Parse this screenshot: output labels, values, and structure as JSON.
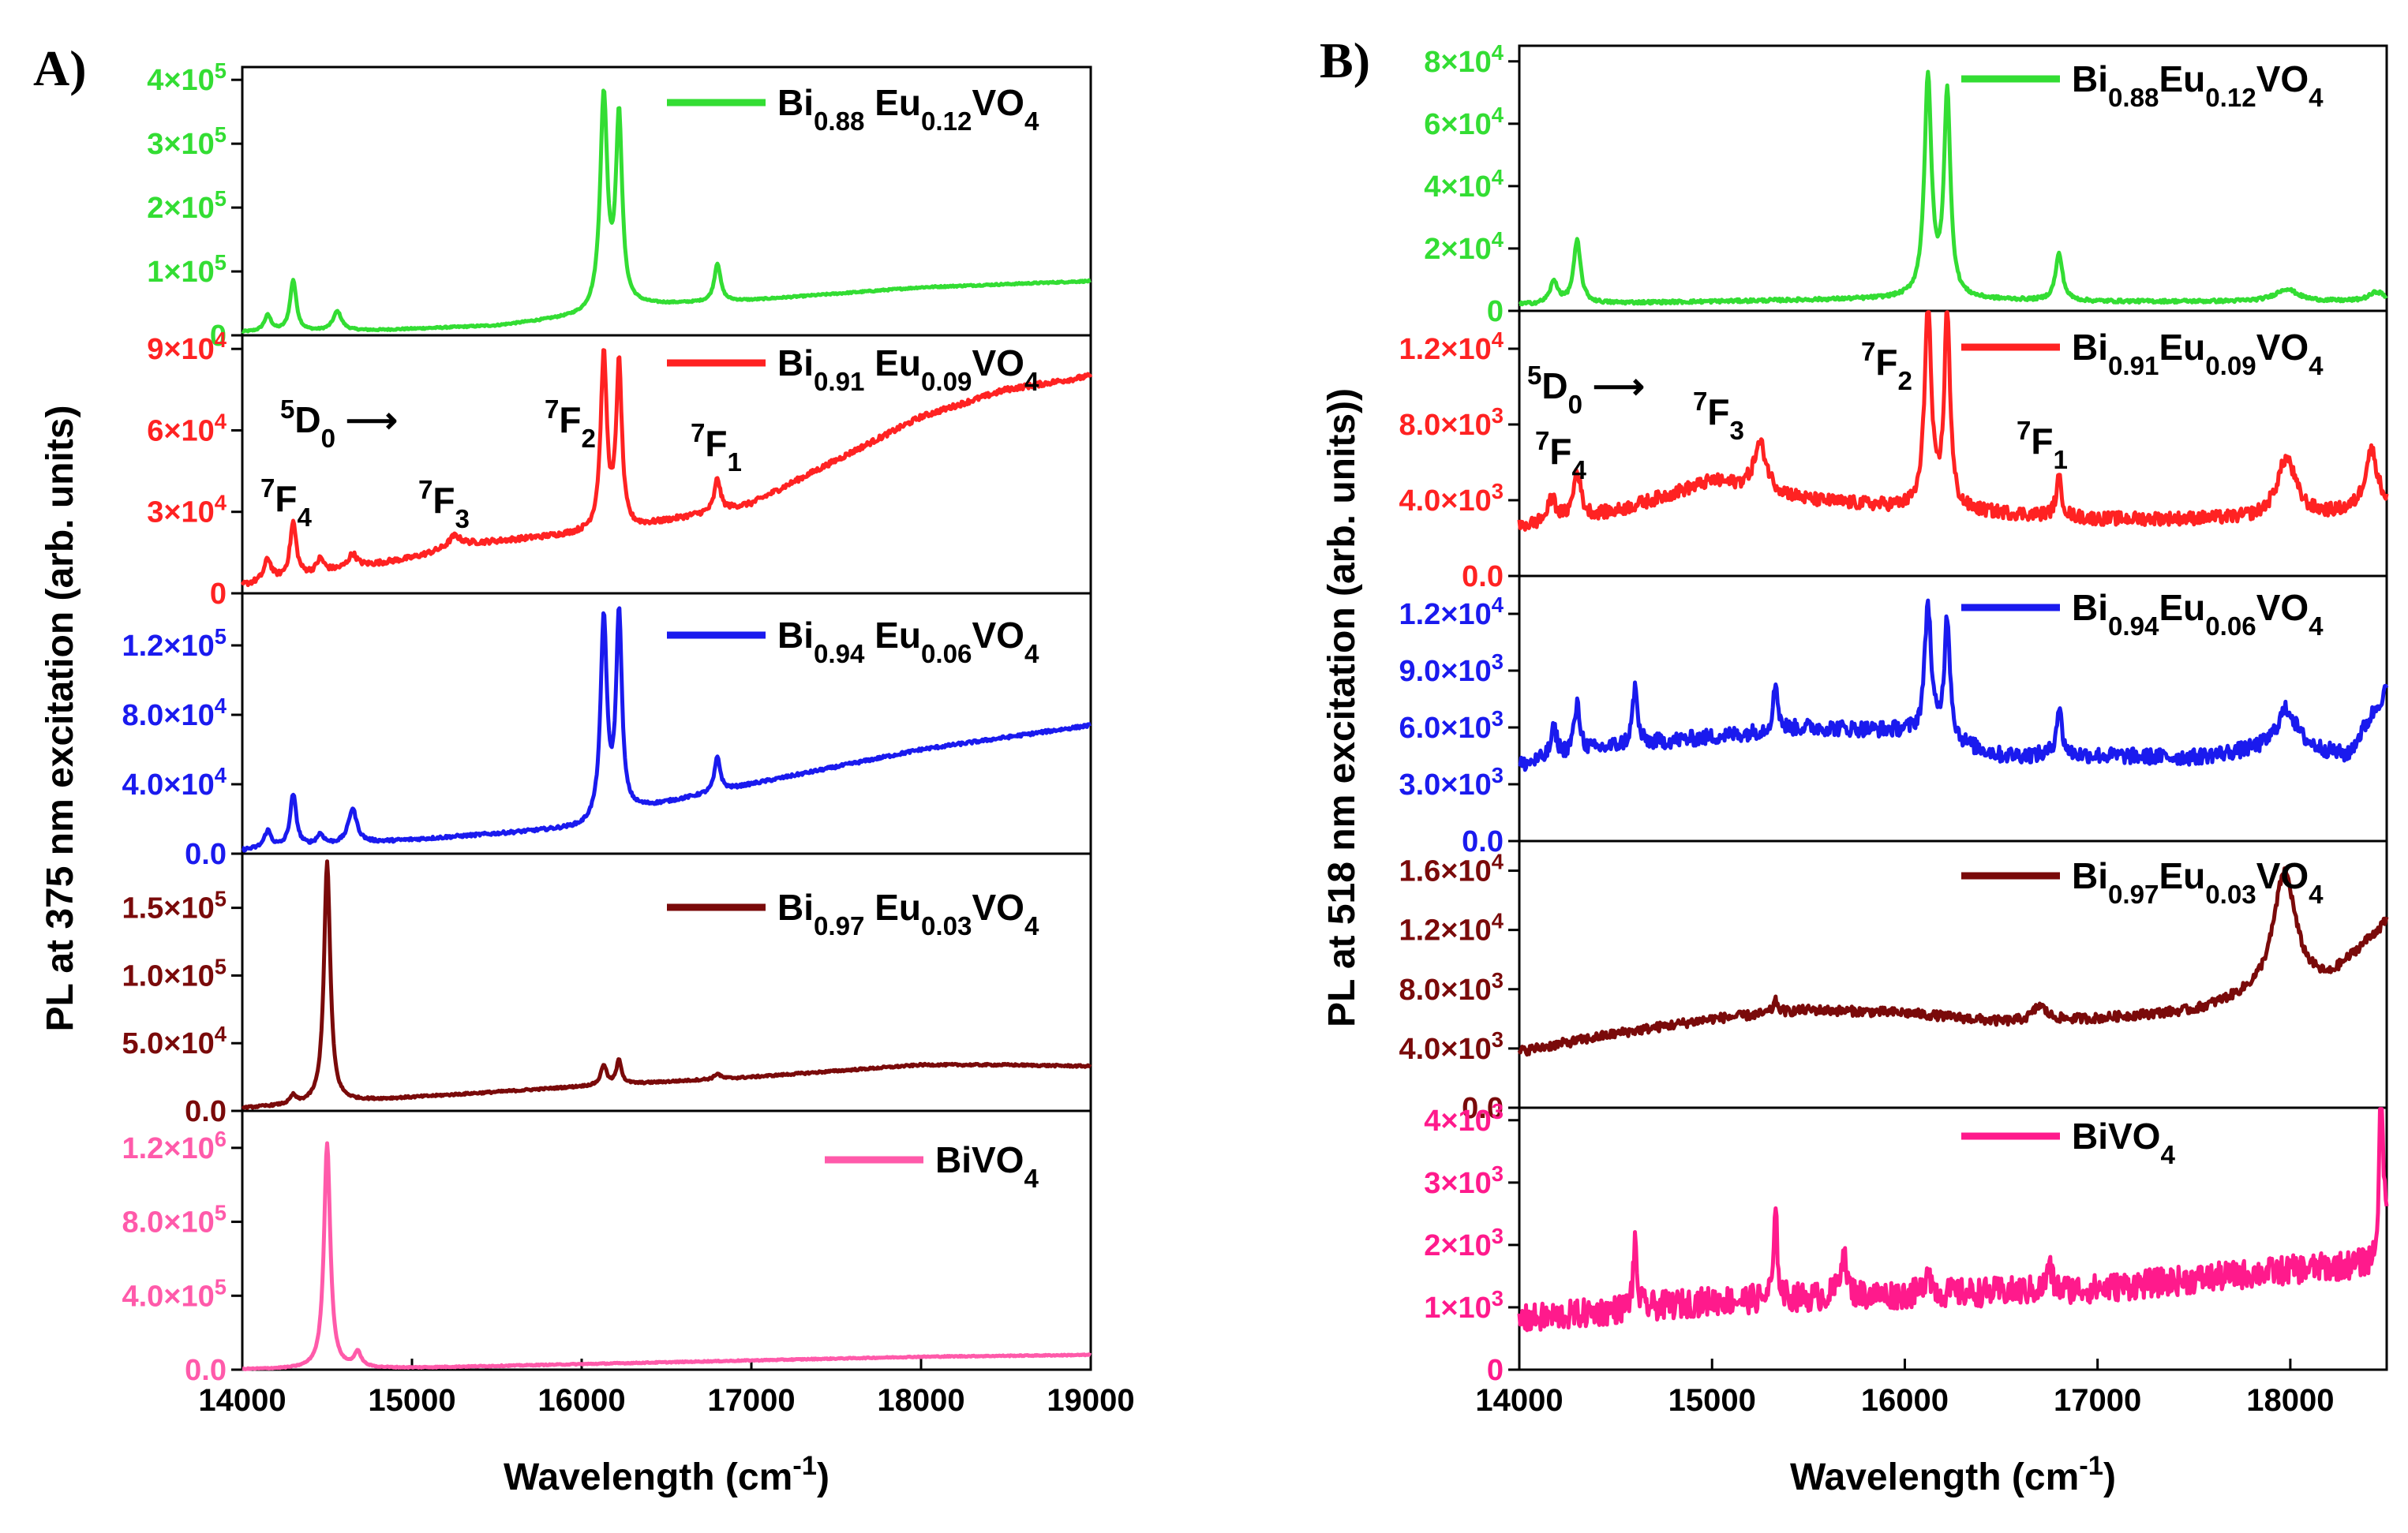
{
  "chart_data": [
    {
      "panel_label": "A)",
      "type": "line",
      "xlabel": "Wavelength (cm⁻¹)",
      "ylabel": "PL at 375 nm excitation (arb. units)",
      "xlim": [
        14000,
        19000
      ],
      "x_ticks": [
        "14000",
        "15000",
        "16000",
        "17000",
        "18000",
        "19000"
      ],
      "x_tick_values": [
        14000,
        15000,
        16000,
        17000,
        18000,
        19000
      ],
      "annotations": [
        "⁵D₀ ⟶",
        "⁷F₄",
        "⁷F₃",
        "⁷F₂",
        "⁷F₁"
      ],
      "series": [
        {
          "name": "Bi₀.₈₈ Eu₀.₁₂VO₄",
          "color": "#33dd33",
          "ylim": [
            0,
            420000
          ],
          "y_tick_values": [
            0,
            100000,
            200000,
            300000,
            400000
          ],
          "y_ticks": [
            "0",
            "1×10⁵",
            "2×10⁵",
            "3×10⁵",
            "4×10⁵"
          ],
          "baseline": [
            [
              14000,
              5000
            ],
            [
              14800,
              8000
            ],
            [
              15500,
              15000
            ],
            [
              16000,
              30000
            ],
            [
              16200,
              45000
            ],
            [
              17000,
              55000
            ],
            [
              18000,
              75000
            ],
            [
              19000,
              85000
            ]
          ],
          "peaks": [
            [
              14150,
              25000,
              25
            ],
            [
              14300,
              80000,
              22
            ],
            [
              14560,
              30000,
              30
            ],
            [
              16130,
              330000,
              25
            ],
            [
              16220,
              290000,
              22
            ],
            [
              16800,
              60000,
              22
            ]
          ]
        },
        {
          "name": "Bi₀.₉₁ Eu₀.₀₉VO₄",
          "color": "#ff2222",
          "ylim": [
            0,
            95000
          ],
          "y_tick_values": [
            0,
            30000,
            60000,
            90000
          ],
          "y_ticks": [
            "0",
            "3×10⁴",
            "6×10⁴",
            "9×10⁴"
          ],
          "baseline": [
            [
              14000,
              3000
            ],
            [
              14500,
              8000
            ],
            [
              15000,
              13000
            ],
            [
              15300,
              18000
            ],
            [
              16000,
              22000
            ],
            [
              16300,
              24000
            ],
            [
              17000,
              33000
            ],
            [
              18000,
              65000
            ],
            [
              18500,
              75000
            ],
            [
              19000,
              80000
            ]
          ],
          "peaks": [
            [
              14150,
              8000,
              25
            ],
            [
              14300,
              20000,
              22
            ],
            [
              14460,
              5000,
              25
            ],
            [
              14650,
              5000,
              30
            ],
            [
              15250,
              4000,
              40
            ],
            [
              16130,
              64000,
              22
            ],
            [
              16220,
              60000,
              20
            ],
            [
              16800,
              12000,
              20
            ]
          ]
        },
        {
          "name": "Bi₀.₉₄ Eu₀.₀₆VO₄",
          "color": "#1a1aee",
          "ylim": [
            0,
            150000
          ],
          "y_tick_values": [
            0,
            40000,
            80000,
            120000
          ],
          "y_ticks": [
            "0.0",
            "4.0×10⁴",
            "8.0×10⁴",
            "1.2×10⁵"
          ],
          "baseline": [
            [
              14000,
              2000
            ],
            [
              15000,
              8000
            ],
            [
              16000,
              15000
            ],
            [
              16300,
              25000
            ],
            [
              17000,
              40000
            ],
            [
              18000,
              60000
            ],
            [
              19000,
              74000
            ]
          ],
          "peaks": [
            [
              14150,
              10000,
              25
            ],
            [
              14300,
              30000,
              22
            ],
            [
              14460,
              6000,
              25
            ],
            [
              14650,
              20000,
              30
            ],
            [
              16130,
              115000,
              22
            ],
            [
              16220,
              115000,
              20
            ],
            [
              16800,
              20000,
              20
            ]
          ]
        },
        {
          "name": "Bi₀.₉₇ Eu₀.₀₃VO₄",
          "color": "#7a0a0a",
          "ylim": [
            0,
            190000
          ],
          "y_tick_values": [
            0,
            50000,
            100000,
            150000
          ],
          "y_ticks": [
            "0.0",
            "5.0×10⁴",
            "1.0×10⁵",
            "1.5×10⁵"
          ],
          "baseline": [
            [
              14000,
              2000
            ],
            [
              15000,
              10000
            ],
            [
              16000,
              18000
            ],
            [
              17000,
              25000
            ],
            [
              18000,
              34000
            ],
            [
              18500,
              34000
            ],
            [
              19000,
              33000
            ]
          ],
          "peaks": [
            [
              14300,
              6000,
              20
            ],
            [
              14500,
              178000,
              22
            ],
            [
              16130,
              15000,
              20
            ],
            [
              16220,
              18000,
              18
            ],
            [
              16800,
              4000,
              20
            ]
          ]
        },
        {
          "name": "BiVO₄",
          "color": "#ff5aaa",
          "ylim": [
            0,
            1400000
          ],
          "y_tick_values": [
            0,
            400000,
            800000,
            1200000
          ],
          "y_ticks": [
            "0.0",
            "4.0×10⁵",
            "8.0×10⁵",
            "1.2×10⁶"
          ],
          "baseline": [
            [
              14000,
              2000
            ],
            [
              15000,
              10000
            ],
            [
              16000,
              30000
            ],
            [
              17000,
              50000
            ],
            [
              18000,
              70000
            ],
            [
              19000,
              80000
            ]
          ],
          "peaks": [
            [
              14500,
              1220000,
              22
            ],
            [
              14680,
              80000,
              25
            ]
          ]
        }
      ]
    },
    {
      "panel_label": "B)",
      "type": "line",
      "xlabel": "Wavelength (cm⁻¹)",
      "ylabel": "PL at 518 nm excitation (arb. units))",
      "xlim": [
        14000,
        18500
      ],
      "x_ticks": [
        "14000",
        "15000",
        "16000",
        "17000",
        "18000"
      ],
      "x_tick_values": [
        14000,
        15000,
        16000,
        17000,
        18000
      ],
      "annotations": [
        "⁵D₀ ⟶",
        "⁷F₄",
        "⁷F₃",
        "⁷F₂",
        "⁷F₁"
      ],
      "series": [
        {
          "name": "Bi₀.₈₈Eu₀.₁₂VO₄",
          "color": "#33dd33",
          "ylim": [
            0,
            85000
          ],
          "y_tick_values": [
            0,
            20000,
            40000,
            60000,
            80000
          ],
          "y_ticks": [
            "0",
            "2×10⁴",
            "4×10⁴",
            "6×10⁴",
            "8×10⁴"
          ],
          "baseline": [
            [
              14000,
              2000
            ],
            [
              15000,
              3000
            ],
            [
              16000,
              4000
            ],
            [
              17000,
              3000
            ],
            [
              18500,
              3000
            ]
          ],
          "peaks": [
            [
              14180,
              7000,
              25
            ],
            [
              14300,
              20000,
              22
            ],
            [
              16120,
              70000,
              22
            ],
            [
              16220,
              65000,
              20
            ],
            [
              16800,
              15000,
              22
            ],
            [
              17980,
              4000,
              70
            ],
            [
              18450,
              3000,
              50
            ]
          ]
        },
        {
          "name": "Bi₀.₉₁Eu₀.₀₉VO₄",
          "color": "#ff2222",
          "ylim": [
            0,
            14000
          ],
          "y_tick_values": [
            0,
            4000,
            8000,
            12000
          ],
          "y_ticks": [
            "0.0",
            "4.0×10³",
            "8.0×10³",
            "1.2×10⁴"
          ],
          "baseline": [
            [
              14000,
              2600
            ],
            [
              14500,
              3400
            ],
            [
              15000,
              5000
            ],
            [
              15500,
              4000
            ],
            [
              16000,
              3600
            ],
            [
              17000,
              3000
            ],
            [
              18000,
              3000
            ],
            [
              18500,
              3500
            ]
          ],
          "peaks": [
            [
              14170,
              1200,
              25
            ],
            [
              14300,
              2500,
              22
            ],
            [
              15250,
              2500,
              40
            ],
            [
              16120,
              11000,
              20
            ],
            [
              16220,
              10500,
              18
            ],
            [
              16800,
              2000,
              18
            ],
            [
              17980,
              3200,
              60
            ],
            [
              18420,
              3200,
              40
            ]
          ]
        },
        {
          "name": "Bi₀.₉₄Eu₀.₀₆VO₄",
          "color": "#1a1aee",
          "ylim": [
            0,
            14000
          ],
          "y_tick_values": [
            0,
            3000,
            6000,
            9000,
            12000
          ],
          "y_ticks": [
            "0.0",
            "3.0×10³",
            "6.0×10³",
            "9.0×10³",
            "1.2×10⁴"
          ],
          "baseline": [
            [
              14000,
              4000
            ],
            [
              14500,
              5000
            ],
            [
              15000,
              5500
            ],
            [
              15500,
              6000
            ],
            [
              16000,
              5800
            ],
            [
              16500,
              4500
            ],
            [
              17000,
              4500
            ],
            [
              17500,
              4400
            ],
            [
              18000,
              5000
            ],
            [
              18300,
              4500
            ],
            [
              18500,
              8000
            ]
          ],
          "peaks": [
            [
              14180,
              1500,
              20
            ],
            [
              14300,
              2500,
              20
            ],
            [
              14600,
              3000,
              15
            ],
            [
              15330,
              2500,
              15
            ],
            [
              16120,
              7000,
              20
            ],
            [
              16220,
              6500,
              18
            ],
            [
              16800,
              2500,
              18
            ],
            [
              17980,
              2000,
              60
            ]
          ]
        },
        {
          "name": "Bi₀.₉₇Eu₀.₀₃VO₄",
          "color": "#7a0a0a",
          "ylim": [
            0,
            18000
          ],
          "y_tick_values": [
            0,
            4000,
            8000,
            12000,
            16000
          ],
          "y_ticks": [
            "0.0",
            "4.0×10³",
            "8.0×10³",
            "1.2×10⁴",
            "1.6×10⁴"
          ],
          "baseline": [
            [
              14000,
              3800
            ],
            [
              14500,
              5000
            ],
            [
              15000,
              6000
            ],
            [
              15500,
              6600
            ],
            [
              16000,
              6400
            ],
            [
              16500,
              5800
            ],
            [
              17000,
              6000
            ],
            [
              17500,
              6500
            ],
            [
              17800,
              7500
            ],
            [
              18200,
              8500
            ],
            [
              18500,
              12500
            ]
          ],
          "peaks": [
            [
              15330,
              800,
              15
            ],
            [
              16700,
              1000,
              40
            ],
            [
              17970,
              8000,
              70
            ]
          ]
        },
        {
          "name": "BiVO₄",
          "color": "#ff1a8c",
          "ylim": [
            0,
            4200
          ],
          "y_tick_values": [
            0,
            1000,
            2000,
            3000,
            4000
          ],
          "y_ticks": [
            "0",
            "1×10³",
            "2×10³",
            "3×10³",
            "4×10³"
          ],
          "baseline": [
            [
              14000,
              800
            ],
            [
              15000,
              1100
            ],
            [
              16000,
              1200
            ],
            [
              17000,
              1300
            ],
            [
              18000,
              1600
            ],
            [
              18450,
              1700
            ],
            [
              18500,
              2500
            ]
          ],
          "peaks": [
            [
              14600,
              1000,
              12
            ],
            [
              15330,
              1300,
              12
            ],
            [
              15680,
              700,
              20
            ],
            [
              16120,
              500,
              15
            ],
            [
              16750,
              400,
              15
            ],
            [
              18470,
              2400,
              12
            ]
          ]
        }
      ]
    }
  ]
}
